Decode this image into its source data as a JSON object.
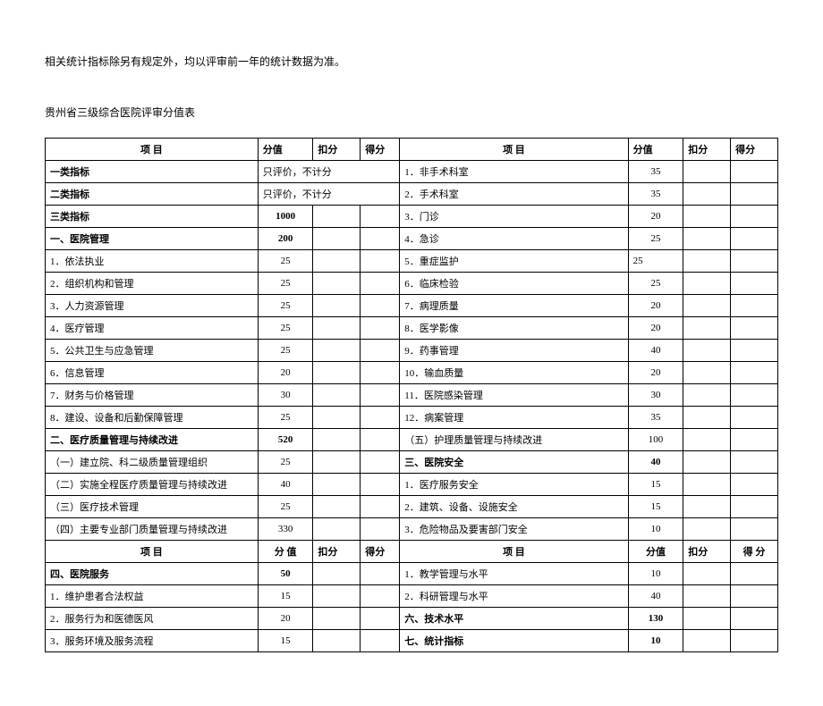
{
  "intro_text": "相关统计指标除另有规定外，均以评审前一年的统计数据为准。",
  "subtitle_text": "贵州省三级综合医院评审分值表",
  "headers": {
    "item": "项 目",
    "score": "分值",
    "deduct": "扣分",
    "get": "得分",
    "score_spaced": "分 值",
    "get_spaced": "得 分"
  },
  "rows": [
    {
      "l_item": "一类指标",
      "l_bold": true,
      "l_score": "只评价，不计分",
      "l_colspan3": true,
      "r_item": "1．非手术科室",
      "r_score": "35",
      "r_center": true
    },
    {
      "l_item": "二类指标",
      "l_bold": true,
      "l_score": "只评价，不计分",
      "l_colspan3": true,
      "r_item": "2．手术科室",
      "r_score": "35",
      "r_center": true
    },
    {
      "l_item": "三类指标",
      "l_bold": true,
      "l_score": "1000",
      "l_center": true,
      "l_score_bold": true,
      "r_item": "3．门诊",
      "r_score": "20",
      "r_center": true
    },
    {
      "l_item": "一、医院管理",
      "l_bold": true,
      "l_score": "200",
      "l_center": true,
      "l_score_bold": true,
      "r_item": "4．急诊",
      "r_score": "25",
      "r_center": true
    },
    {
      "l_item": "1．依法执业",
      "l_score": "25",
      "l_center": true,
      "r_item": "5．重症监护",
      "r_score": "25",
      "r_center": false
    },
    {
      "l_item": "2．组织机构和管理",
      "l_score": "25",
      "l_center": true,
      "r_item": "6．临床检验",
      "r_score": "25",
      "r_center": true
    },
    {
      "l_item": "3．人力资源管理",
      "l_score": "25",
      "l_center": true,
      "r_item": "7．病理质量",
      "r_score": "20",
      "r_center": true
    },
    {
      "l_item": "4．医疗管理",
      "l_score": "25",
      "l_center": true,
      "r_item": "8．医学影像",
      "r_score": "20",
      "r_center": true
    },
    {
      "l_item": "5．公共卫生与应急管理",
      "l_score": "25",
      "l_center": true,
      "r_item": "9．药事管理",
      "r_score": "40",
      "r_center": true
    },
    {
      "l_item": "6．信息管理",
      "l_score": "20",
      "l_center": true,
      "r_item": "10．输血质量",
      "r_score": "20",
      "r_center": true
    },
    {
      "l_item": "7．财务与价格管理",
      "l_score": "30",
      "l_center": true,
      "r_item": "11．医院感染管理",
      "r_score": "30",
      "r_center": true
    },
    {
      "l_item": "8．建设、设备和后勤保障管理",
      "l_score": "25",
      "l_center": true,
      "r_item": "12．病案管理",
      "r_score": "35",
      "r_center": true
    },
    {
      "l_item": "二、医疗质量管理与持续改进",
      "l_bold": true,
      "l_score": "520",
      "l_center": true,
      "l_score_bold": true,
      "r_item": "（五）护理质量管理与持续改进",
      "r_score": "100",
      "r_center": true
    },
    {
      "l_item": "（一）建立院、科二级质量管理组织",
      "l_score": "25",
      "l_center": true,
      "r_item": "三、医院安全",
      "r_bold": true,
      "r_score": "40",
      "r_center": true,
      "r_score_bold": true
    },
    {
      "l_item": "（二）实施全程医疗质量管理与持续改进",
      "l_score": "40",
      "l_center": true,
      "r_item": "1．医疗服务安全",
      "r_score": "15",
      "r_center": true
    },
    {
      "l_item": "（三）医疗技术管理",
      "l_score": "25",
      "l_center": true,
      "r_item": "2．建筑、设备、设施安全",
      "r_score": "15",
      "r_center": true
    },
    {
      "l_item": "（四）主要专业部门质量管理与持续改进",
      "l_score": "330",
      "l_center": true,
      "r_item": "3．危险物品及要害部门安全",
      "r_score": "10",
      "r_center": true
    }
  ],
  "second_header": true,
  "rows2": [
    {
      "l_item": "四、医院服务",
      "l_bold": true,
      "l_score": "50",
      "l_center": true,
      "l_score_bold": true,
      "r_item": "1．教学管理与水平",
      "r_score": "10",
      "r_center": true
    },
    {
      "l_item": "1．维护患者合法权益",
      "l_score": "15",
      "l_center": true,
      "r_item": "2．科研管理与水平",
      "r_score": "40",
      "r_center": true
    },
    {
      "l_item": "2．服务行为和医德医风",
      "l_score": "20",
      "l_center": true,
      "r_item": "六、技术水平",
      "r_bold": true,
      "r_score": "130",
      "r_center": true,
      "r_score_bold": true
    },
    {
      "l_item": "3．服务环境及服务流程",
      "l_score": "15",
      "l_center": true,
      "r_item": "七、统计指标",
      "r_bold": true,
      "r_score": "10",
      "r_center": true,
      "r_score_bold": true
    }
  ]
}
